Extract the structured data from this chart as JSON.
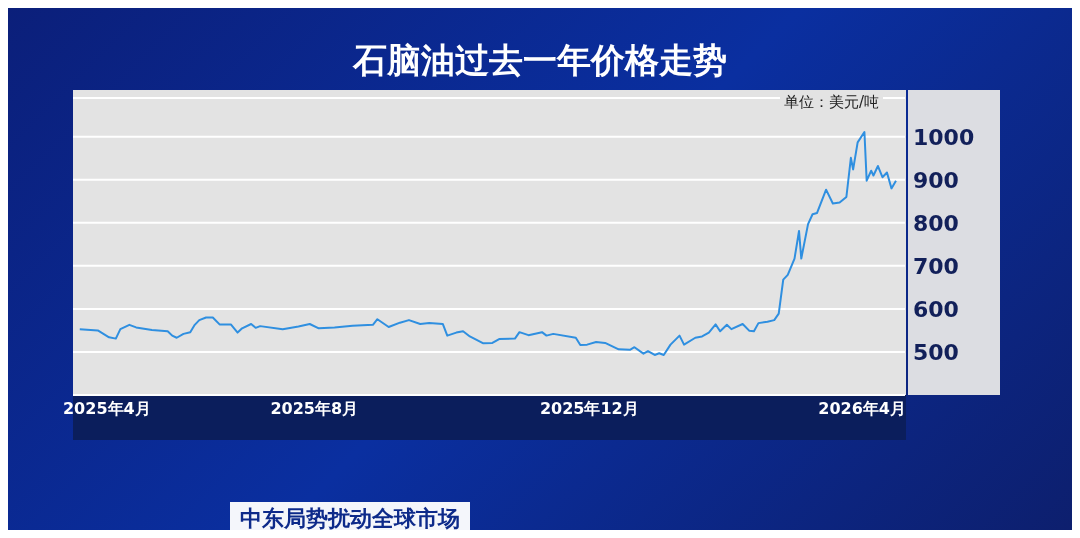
{
  "chart_data": {
    "type": "line",
    "title": "石脑油过去一年价格走势",
    "ylabel": "单位：美元/吨",
    "annotations": [
      "中东局势扰动全球市场"
    ],
    "x": [
      "2025-04-19",
      "2025-04-27",
      "2025-05-02",
      "2025-05-05",
      "2025-05-07",
      "2025-05-11",
      "2025-05-14",
      "2025-05-21",
      "2025-05-28",
      "2025-05-30",
      "2025-06-01",
      "2025-06-04",
      "2025-06-07",
      "2025-06-09",
      "2025-06-11",
      "2025-06-14",
      "2025-06-17",
      "2025-06-20",
      "2025-06-25",
      "2025-06-28",
      "2025-06-30",
      "2025-07-04",
      "2025-07-06",
      "2025-07-08",
      "2025-07-18",
      "2025-07-25",
      "2025-07-30",
      "2025-08-03",
      "2025-08-10",
      "2025-08-18",
      "2025-08-27",
      "2025-08-29",
      "2025-09-03",
      "2025-09-08",
      "2025-09-12",
      "2025-09-17",
      "2025-09-21",
      "2025-09-27",
      "2025-09-29",
      "2025-10-03",
      "2025-10-06",
      "2025-10-09",
      "2025-10-15",
      "2025-10-19",
      "2025-10-22",
      "2025-10-29",
      "2025-10-31",
      "2025-11-04",
      "2025-11-10",
      "2025-11-12",
      "2025-11-15",
      "2025-11-25",
      "2025-11-27",
      "2025-11-30",
      "2025-12-04",
      "2025-12-08",
      "2025-12-14",
      "2025-12-19",
      "2025-12-21",
      "2025-12-25",
      "2025-12-27",
      "2025-12-30",
      "2026-01-01",
      "2026-01-03",
      "2026-01-06",
      "2026-01-10",
      "2026-01-12",
      "2026-01-17",
      "2026-01-20",
      "2026-01-23",
      "2026-01-26",
      "2026-01-28",
      "2026-01-31",
      "2026-02-02",
      "2026-02-07",
      "2026-02-10",
      "2026-02-12",
      "2026-02-14",
      "2026-02-18",
      "2026-02-21",
      "2026-02-23",
      "2026-02-25",
      "2026-02-27",
      "2026-03-02",
      "2026-03-04",
      "2026-03-05",
      "2026-03-08",
      "2026-03-10",
      "2026-03-12",
      "2026-03-16",
      "2026-03-19",
      "2026-03-22",
      "2026-03-25",
      "2026-03-27",
      "2026-03-28",
      "2026-03-30",
      "2026-04-02",
      "2026-04-03",
      "2026-04-05",
      "2026-04-06",
      "2026-04-08",
      "2026-04-10",
      "2026-04-12",
      "2026-04-14",
      "2026-04-16"
    ],
    "series": [
      {
        "color": "#2f8fe0",
        "values": [
          553,
          550,
          534,
          531,
          553,
          563,
          557,
          551,
          548,
          538,
          533,
          542,
          546,
          563,
          574,
          580,
          580,
          564,
          564,
          545,
          555,
          565,
          556,
          560,
          553,
          559,
          565,
          555,
          557,
          561,
          563,
          576,
          558,
          568,
          574,
          565,
          567,
          565,
          538,
          545,
          548,
          536,
          520,
          521,
          530,
          531,
          546,
          539,
          546,
          538,
          542,
          533,
          516,
          517,
          523,
          521,
          506,
          505,
          511,
          496,
          502,
          493,
          497,
          493,
          517,
          538,
          517,
          533,
          536,
          545,
          564,
          548,
          563,
          553,
          565,
          549,
          548,
          567,
          570,
          574,
          589,
          668,
          679,
          717,
          781,
          717,
          797,
          820,
          823,
          877,
          845,
          847,
          860,
          951,
          924,
          987,
          1011,
          898,
          921,
          910,
          932,
          906,
          917,
          880,
          898
        ]
      }
    ],
    "xlim": [
      "2025-04-16",
      "2026-04-20"
    ],
    "xticks": [
      {
        "value": "2025-05-01",
        "label": "2025年4月"
      },
      {
        "value": "2025-08-01",
        "label": "2025年8月"
      },
      {
        "value": "2025-12-01",
        "label": "2025年12月"
      },
      {
        "value": "2026-04-01",
        "label": "2026年4月"
      }
    ],
    "ylim": [
      400,
      1090
    ],
    "yticks": [
      500,
      600,
      700,
      800,
      900,
      1000
    ],
    "grid": "y",
    "legend": false,
    "marker": "none",
    "line_style": "solid"
  }
}
